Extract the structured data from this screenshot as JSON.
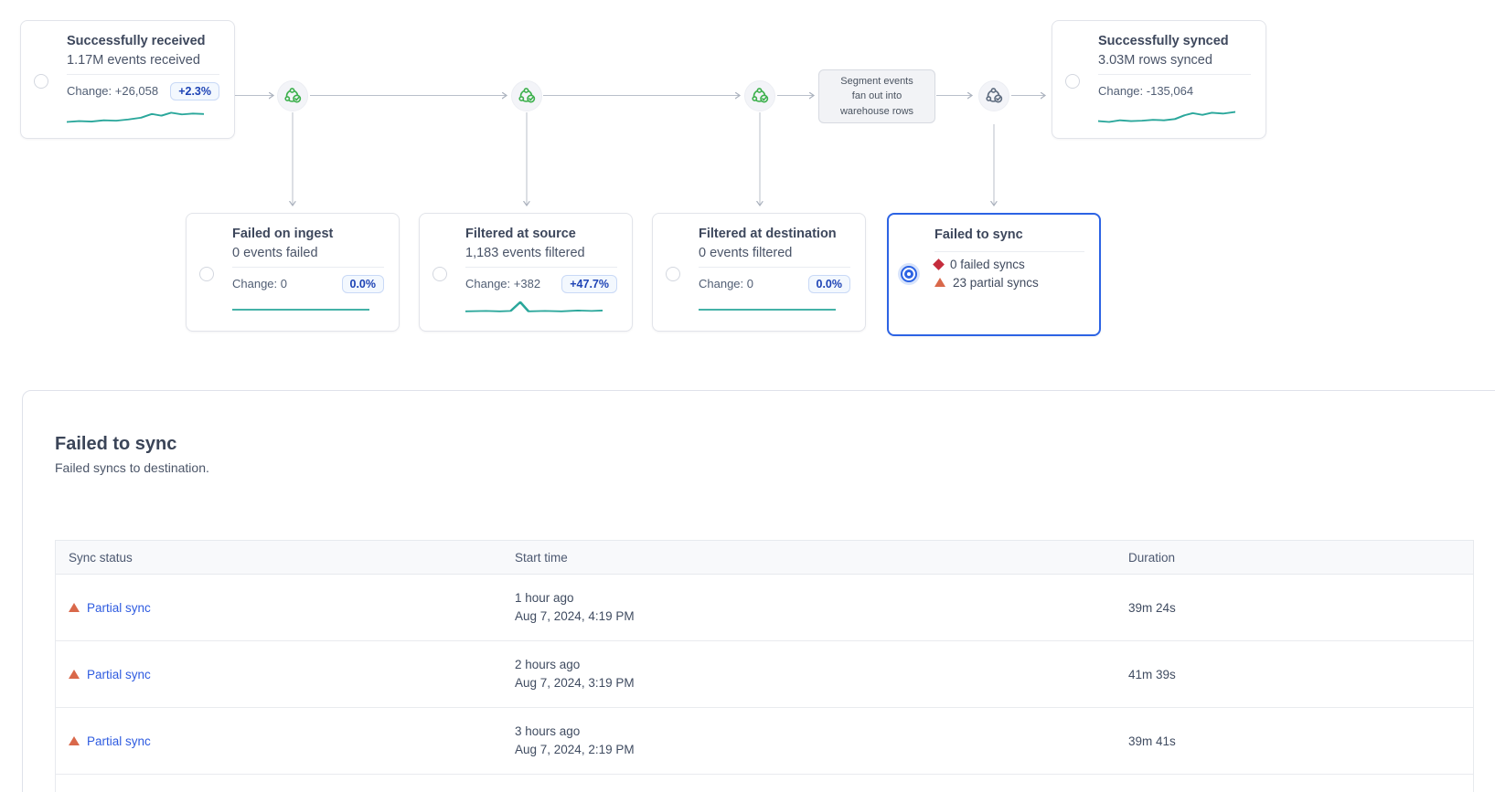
{
  "colors": {
    "teal_sparkline": "#2aa79b",
    "green_step_icon": "#3cb04c",
    "gray_step_icon": "#5d6b7e",
    "accent_blue": "#2c63e4",
    "link_blue": "#2e5be0",
    "badge_blue_text": "#1d43b5",
    "failed_red": "#c52c3c",
    "partial_orange": "#d9684a"
  },
  "pipeline": {
    "received": {
      "title": "Successfully received",
      "value": "1.17M events received",
      "change": "Change: +26,058",
      "badge": "+2.3%",
      "spark": [
        [
          0,
          18
        ],
        [
          9,
          17
        ],
        [
          18,
          17.5
        ],
        [
          27,
          16
        ],
        [
          36,
          16.5
        ],
        [
          45,
          15
        ],
        [
          54,
          13
        ],
        [
          62,
          8.5
        ],
        [
          69,
          10.5
        ],
        [
          76,
          7
        ],
        [
          84,
          9
        ],
        [
          92,
          8
        ],
        [
          100,
          8.5
        ]
      ]
    },
    "failed_ingest": {
      "title": "Failed on ingest",
      "value": "0 events failed",
      "change": "Change: 0",
      "badge": "0.0%",
      "spark": [
        [
          0,
          12
        ],
        [
          100,
          12
        ]
      ]
    },
    "filtered_source": {
      "title": "Filtered at source",
      "value": "1,183 events filtered",
      "change": "Change: +382",
      "badge": "+47.7%",
      "spark": [
        [
          0,
          14
        ],
        [
          15,
          13.5
        ],
        [
          25,
          14
        ],
        [
          33,
          13.5
        ],
        [
          40,
          3
        ],
        [
          46,
          14
        ],
        [
          58,
          13.5
        ],
        [
          70,
          14
        ],
        [
          82,
          13
        ],
        [
          92,
          13.5
        ],
        [
          100,
          13
        ]
      ]
    },
    "filtered_destination": {
      "title": "Filtered at destination",
      "value": "0 events filtered",
      "change": "Change: 0",
      "badge": "0.0%",
      "spark": [
        [
          0,
          12
        ],
        [
          100,
          12
        ]
      ]
    },
    "failed_sync": {
      "title": "Failed to sync",
      "stats": [
        {
          "icon": "diamond-icon",
          "label": "0 failed syncs"
        },
        {
          "icon": "triangle-icon",
          "label": "23 partial syncs"
        }
      ]
    },
    "synced": {
      "title": "Successfully synced",
      "value": "3.03M rows synced",
      "change": "Change: -135,064",
      "spark": [
        [
          0,
          17
        ],
        [
          8,
          18
        ],
        [
          16,
          16
        ],
        [
          24,
          17
        ],
        [
          32,
          16.5
        ],
        [
          40,
          15.5
        ],
        [
          48,
          16
        ],
        [
          56,
          14.5
        ],
        [
          63,
          10
        ],
        [
          69,
          7.5
        ],
        [
          76,
          9.5
        ],
        [
          83,
          7
        ],
        [
          91,
          8
        ],
        [
          100,
          6
        ]
      ]
    },
    "fanout_note_lines": [
      "Segment events",
      "fan out into",
      "warehouse rows"
    ]
  },
  "section": {
    "title": "Failed to sync",
    "subtitle": "Failed syncs to destination.",
    "table": {
      "columns": [
        "Sync status",
        "Start time",
        "Duration"
      ],
      "rows": [
        {
          "status": "Partial sync",
          "time_relative": "1 hour ago",
          "time_absolute": "Aug 7, 2024, 4:19 PM",
          "duration": "39m 24s"
        },
        {
          "status": "Partial sync",
          "time_relative": "2 hours ago",
          "time_absolute": "Aug 7, 2024, 3:19 PM",
          "duration": "41m 39s"
        },
        {
          "status": "Partial sync",
          "time_relative": "3 hours ago",
          "time_absolute": "Aug 7, 2024, 2:19 PM",
          "duration": "39m 41s"
        }
      ]
    }
  }
}
